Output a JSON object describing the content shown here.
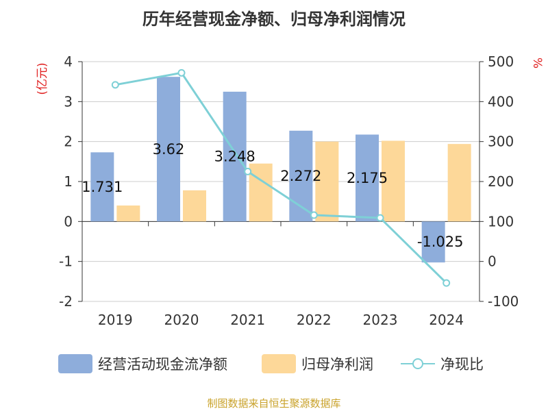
{
  "title": "历年经营现金净额、归母净利润情况",
  "source": "制图数据来自恒生聚源数据库",
  "chart_data": {
    "type": "bar",
    "categories": [
      "2019",
      "2020",
      "2021",
      "2022",
      "2023",
      "2024"
    ],
    "left_axis": {
      "label": "(亿元)",
      "ticks": [
        "4",
        "3",
        "2",
        "1",
        "0",
        "-1",
        "-2"
      ],
      "range": [
        -2,
        4
      ]
    },
    "right_axis": {
      "label": "%",
      "ticks": [
        "500",
        "400",
        "300",
        "200",
        "100",
        "0",
        "-100"
      ],
      "range": [
        -100,
        500
      ]
    },
    "series": [
      {
        "name": "经营活动现金流净额",
        "type": "bar",
        "axis": "left",
        "color": "#8eaddb",
        "values": [
          1.731,
          3.62,
          3.248,
          2.272,
          2.175,
          -1.025
        ],
        "labels": [
          "1.731",
          "3.62",
          "3.248",
          "2.272",
          "2.175",
          "-1.025"
        ]
      },
      {
        "name": "归母净利润",
        "type": "bar",
        "axis": "left",
        "color": "#fdd899",
        "values": [
          0.4,
          0.78,
          1.45,
          2.0,
          2.02,
          1.94
        ]
      },
      {
        "name": "净现比",
        "type": "line",
        "axis": "right",
        "color": "#7ed0d6",
        "values": [
          442,
          472,
          225,
          116,
          109,
          -54
        ]
      }
    ],
    "grid": true,
    "legend_position": "bottom"
  }
}
